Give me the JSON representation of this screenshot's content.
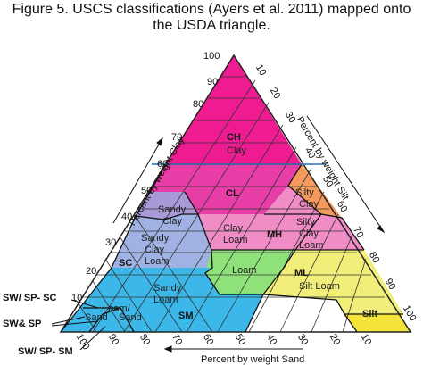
{
  "caption": {
    "line1": "Figure 5.  USCS classifications (Ayers et al. 2011) mapped onto",
    "line2": "the USDA triangle."
  },
  "axes": {
    "clay": "Percent by weight Clay",
    "silt": "Percent by weight Silt",
    "sand": "Percent by weight Sand"
  },
  "ticks": {
    "clay": [
      "100",
      "90",
      "80",
      "70",
      "60",
      "50",
      "40",
      "30",
      "20",
      "10"
    ],
    "silt": [
      "10",
      "20",
      "30",
      "40",
      "50",
      "60",
      "70",
      "80",
      "90",
      "100"
    ],
    "sand": [
      "100",
      "90",
      "80",
      "70",
      "60",
      "50",
      "40",
      "30",
      "20",
      "10"
    ]
  },
  "usda_textures": {
    "clay": "Clay",
    "sandy_clay": [
      "Sandy",
      "Clay"
    ],
    "silty_clay": [
      "Silty",
      "Clay"
    ],
    "clay_loam": [
      "Clay",
      "Loam"
    ],
    "silty_clay_loam": [
      "Silty",
      "Clay",
      "Loam"
    ],
    "sandy_clay_loam": [
      "Sandy",
      "Clay",
      "Loam"
    ],
    "loam": "Loam",
    "silt_loam": "Silt Loam",
    "sandy_loam": [
      "Sandy",
      "Loam"
    ],
    "loamy_sand": [
      "Loam/"
    ],
    "sand": "Sand",
    "loamy_sand_b": "Sand",
    "silt": "Silt"
  },
  "uscs_classes": {
    "ch": "CH",
    "cl": "CL",
    "mh": "MH",
    "ml": "ML",
    "sc": "SC",
    "sm": "SM",
    "sw_sp_sc": "SW/ SP- SC",
    "sw_sp": "SW& SP",
    "sw_sp_sm": "SW/ SP- SM"
  },
  "colors": {
    "ch": "#ee1b91",
    "cl": "#e73da6",
    "mh": "#f08cc6",
    "silty_clay": "#f39a5c",
    "sc": "#9fb2e3",
    "sandy_clay": "#a89ad8",
    "sm": "#3cb7e9",
    "ml_loam": "#8fe27a",
    "ml_silt_loam": "#f2ee7a",
    "silt": "#f4e43a"
  }
}
